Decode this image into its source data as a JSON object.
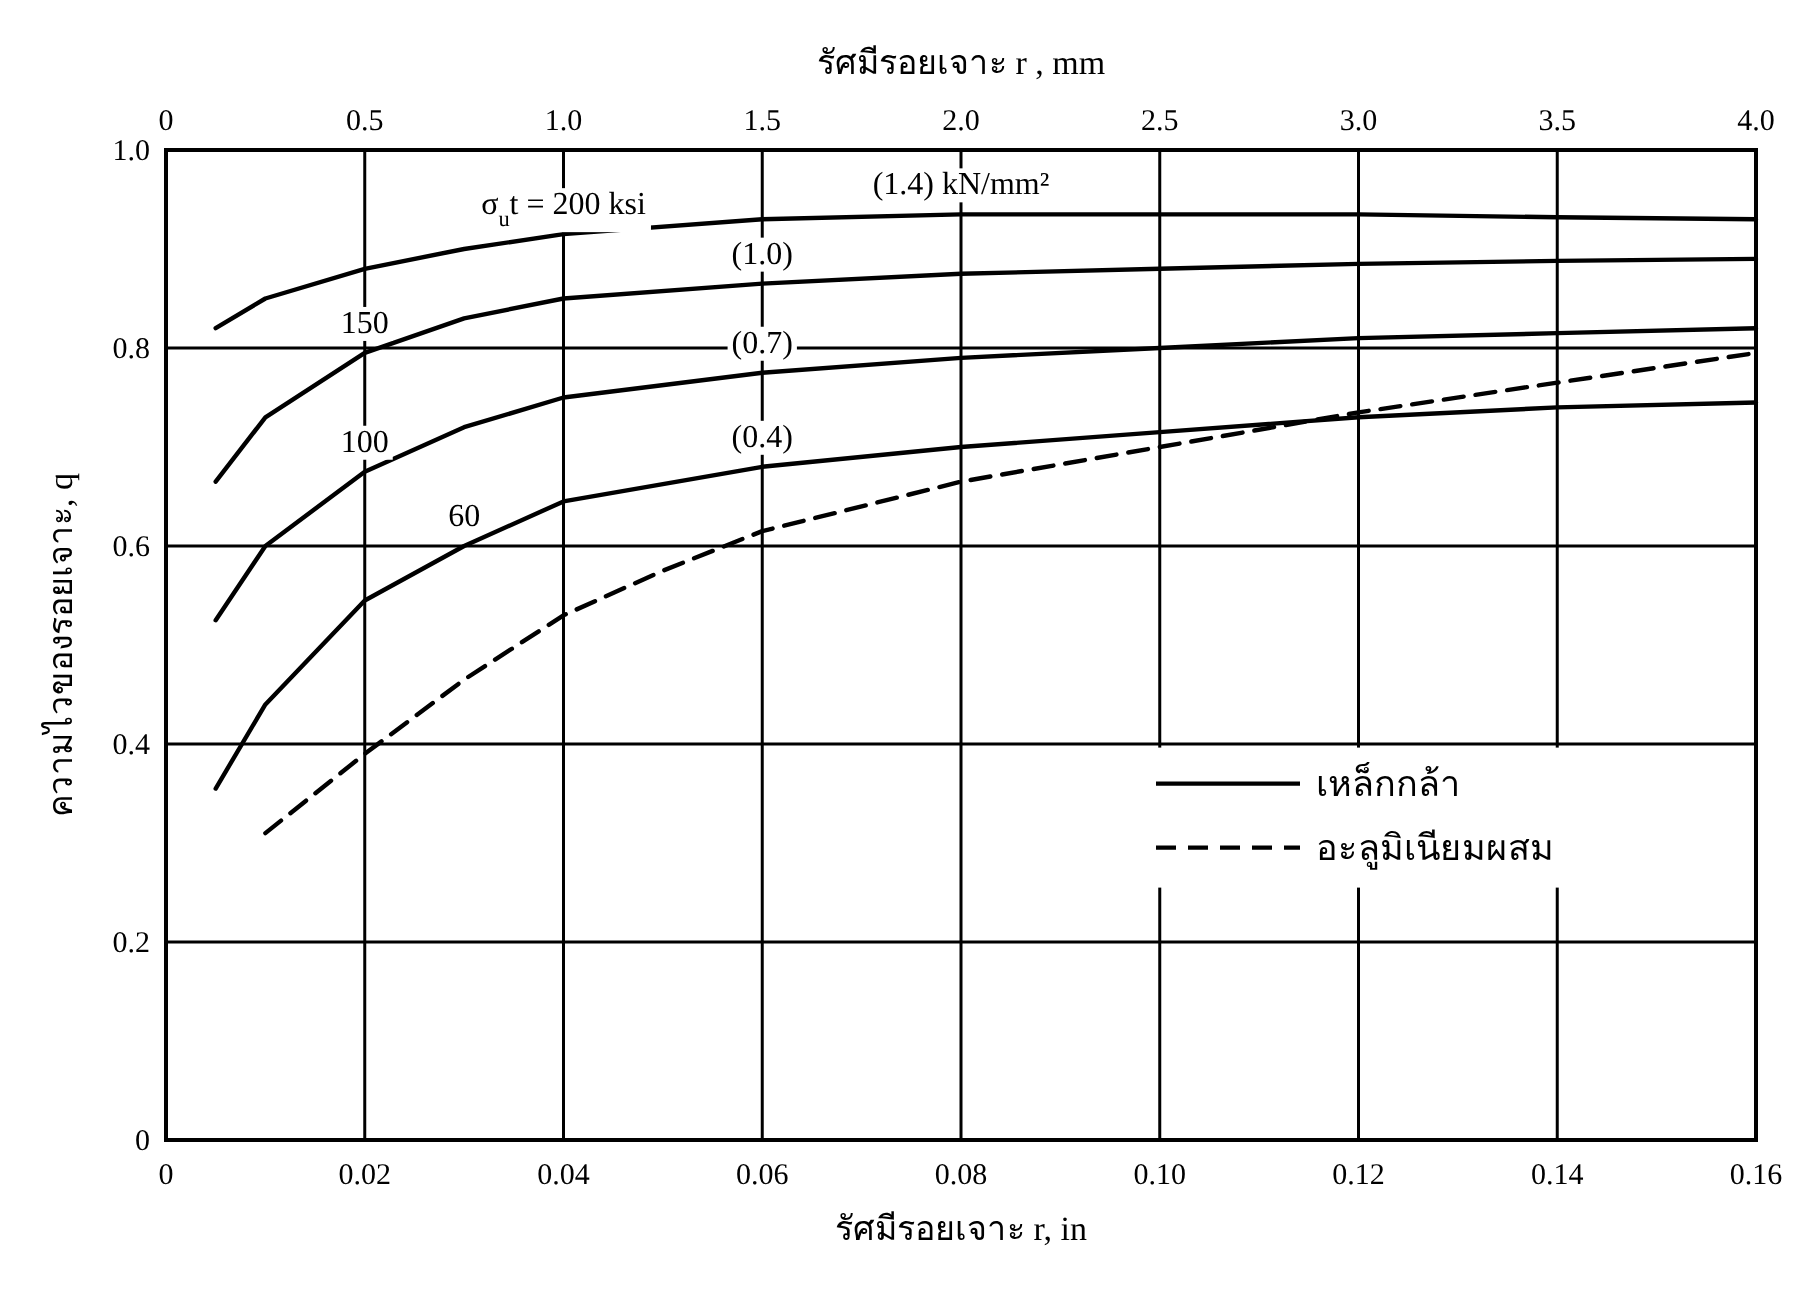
{
  "chart_data": {
    "type": "line",
    "xlabel": "รัศมีรอยเจาะ r, in",
    "x2label": "รัศมีรอยเจาะ r , mm",
    "ylabel": "ความไวของรอยเจาะ, q",
    "xlim": [
      0,
      0.16
    ],
    "xticks": [
      0,
      {
        "value": 0.02,
        "label": "0.02"
      },
      {
        "value": 0.04,
        "label": "0.04"
      },
      {
        "value": 0.06,
        "label": "0.06"
      },
      {
        "value": 0.08,
        "label": "0.08"
      },
      {
        "value": 0.1,
        "label": "0.10"
      },
      {
        "value": 0.12,
        "label": "0.12"
      },
      {
        "value": 0.14,
        "label": "0.14"
      },
      {
        "value": 0.16,
        "label": "0.16"
      }
    ],
    "x2lim": [
      0,
      4.0
    ],
    "x2ticks": [
      0,
      0.5,
      {
        "value": 1,
        "label": "1.0"
      },
      1.5,
      {
        "value": 2,
        "label": "2.0"
      },
      2.5,
      {
        "value": 3,
        "label": "3.0"
      },
      3.5,
      {
        "value": 4,
        "label": "4.0"
      }
    ],
    "ylim": [
      0,
      1.0
    ],
    "yticks": [
      0,
      0.2,
      0.4,
      0.6,
      0.8,
      {
        "value": 1,
        "label": "1.0"
      }
    ],
    "grid": true,
    "legend": "right",
    "series": [
      {
        "name": "เหล็กกล้า",
        "color": "#000000",
        "line_style": "solid",
        "x": [
          0.005,
          0.01,
          0.02,
          0.03,
          0.04,
          0.06,
          0.08,
          0.1,
          0.12,
          0.14,
          0.16
        ],
        "values": [
          0.82,
          0.85,
          0.88,
          0.9,
          0.915,
          0.93,
          0.935,
          0.935,
          0.935,
          0.932,
          0.93
        ]
      },
      {
        "color": "#000000",
        "line_style": "solid",
        "x": [
          0.005,
          0.01,
          0.02,
          0.03,
          0.04,
          0.06,
          0.08,
          0.1,
          0.12,
          0.14,
          0.16
        ],
        "values": [
          0.665,
          0.73,
          0.795,
          0.83,
          0.85,
          0.865,
          0.875,
          0.88,
          0.885,
          0.888,
          0.89
        ]
      },
      {
        "color": "#000000",
        "line_style": "solid",
        "x": [
          0.005,
          0.01,
          0.02,
          0.03,
          0.04,
          0.06,
          0.08,
          0.1,
          0.12,
          0.14,
          0.16
        ],
        "values": [
          0.525,
          0.6,
          0.675,
          0.72,
          0.75,
          0.775,
          0.79,
          0.8,
          0.81,
          0.815,
          0.82
        ]
      },
      {
        "color": "#000000",
        "line_style": "solid",
        "x": [
          0.005,
          0.01,
          0.02,
          0.03,
          0.04,
          0.06,
          0.08,
          0.1,
          0.12,
          0.14,
          0.16
        ],
        "values": [
          0.355,
          0.44,
          0.545,
          0.6,
          0.645,
          0.68,
          0.7,
          0.715,
          0.73,
          0.74,
          0.745
        ]
      },
      {
        "name": "อะลูมิเนียมผสม",
        "color": "#000000",
        "line_style": "dashed",
        "x": [
          0.01,
          0.02,
          0.03,
          0.04,
          0.05,
          0.06,
          0.08,
          0.1,
          0.12,
          0.14,
          0.16
        ],
        "values": [
          0.31,
          0.39,
          0.465,
          0.53,
          0.575,
          0.615,
          0.665,
          0.7,
          0.735,
          0.765,
          0.795
        ]
      }
    ],
    "annotations": [
      {
        "text": "σ$_{u}$t = 200 ksi",
        "x": 0.04,
        "y": 0.915
      },
      {
        "text": "150",
        "x": 0.02,
        "y": 0.795
      },
      {
        "text": "100",
        "x": 0.02,
        "y": 0.675
      },
      {
        "text": "60",
        "x": 0.03,
        "y": 0.6
      },
      {
        "text": "(1.4) kN/mm²",
        "x": 0.08,
        "y": 0.935
      },
      {
        "text": "(1.0)",
        "x": 0.06,
        "y": 0.865
      },
      {
        "text": "(0.7)",
        "x": 0.06,
        "y": 0.775
      },
      {
        "text": "(0.4)",
        "x": 0.06,
        "y": 0.68
      }
    ]
  }
}
